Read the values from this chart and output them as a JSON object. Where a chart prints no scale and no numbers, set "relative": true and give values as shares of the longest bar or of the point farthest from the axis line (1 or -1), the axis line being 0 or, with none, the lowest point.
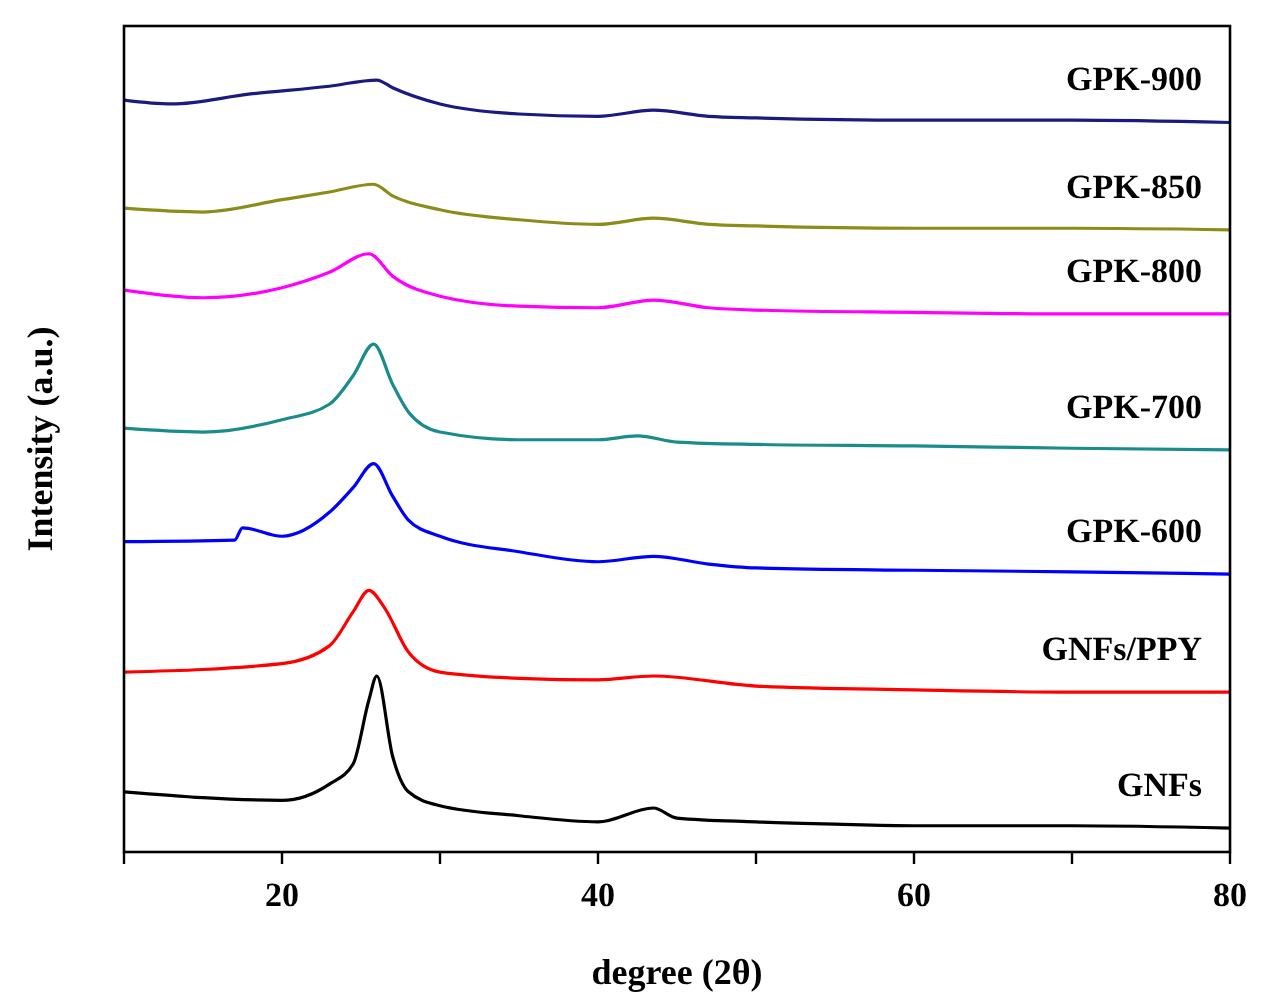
{
  "chart_data": {
    "type": "line",
    "relative": true,
    "xlabel": "degree (2θ)",
    "ylabel": "Intensity (a.u.)",
    "xlim": [
      10,
      80
    ],
    "xticks": [
      {
        "value": 10,
        "label": null
      },
      20,
      {
        "value": 30,
        "label": null
      },
      40,
      {
        "value": 50,
        "label": null
      },
      60,
      {
        "value": 70,
        "label": null
      },
      80
    ],
    "series": [
      {
        "name": "GPK-900",
        "color": "#1a1a80",
        "x": [
          10,
          13,
          18,
          23,
          26,
          27,
          30,
          35,
          40,
          43.5,
          47,
          50,
          60,
          70,
          80
        ],
        "values": [
          0.974,
          0.969,
          0.982,
          0.992,
          1.0,
          0.99,
          0.969,
          0.956,
          0.953,
          0.961,
          0.953,
          0.951,
          0.948,
          0.948,
          0.945
        ]
      },
      {
        "name": "GPK-850",
        "color": "#8c8c1a",
        "x": [
          10,
          15,
          20,
          23,
          25.8,
          27,
          30,
          35,
          40,
          43.5,
          47,
          50,
          60,
          70,
          80
        ],
        "values": [
          0.834,
          0.829,
          0.845,
          0.855,
          0.865,
          0.85,
          0.832,
          0.819,
          0.813,
          0.821,
          0.813,
          0.811,
          0.808,
          0.808,
          0.806
        ]
      },
      {
        "name": "GPK-800",
        "color": "#ff00ff",
        "x": [
          10,
          15,
          20,
          23,
          25.5,
          27,
          30,
          35,
          40,
          43.5,
          47,
          50,
          60,
          70,
          80
        ],
        "values": [
          0.728,
          0.718,
          0.731,
          0.751,
          0.775,
          0.746,
          0.72,
          0.707,
          0.705,
          0.715,
          0.705,
          0.702,
          0.699,
          0.697,
          0.697
        ]
      },
      {
        "name": "GPK-700",
        "color": "#1a8c8c",
        "x": [
          10,
          15,
          20,
          23,
          24.5,
          25.8,
          27,
          28,
          30,
          35,
          40,
          42.5,
          45,
          50,
          60,
          70,
          80
        ],
        "values": [
          0.549,
          0.544,
          0.56,
          0.58,
          0.617,
          0.658,
          0.606,
          0.57,
          0.544,
          0.534,
          0.534,
          0.539,
          0.531,
          0.528,
          0.526,
          0.523,
          0.521
        ]
      },
      {
        "name": "GPK-600",
        "color": "#0000ff",
        "x": [
          10,
          17,
          17.5,
          20,
          23,
          24.5,
          25.8,
          27,
          28,
          30,
          35,
          40,
          43.5,
          47,
          50,
          60,
          70,
          80
        ],
        "values": [
          0.402,
          0.404,
          0.42,
          0.409,
          0.44,
          0.472,
          0.503,
          0.461,
          0.43,
          0.409,
          0.389,
          0.376,
          0.383,
          0.373,
          0.368,
          0.365,
          0.363,
          0.36
        ]
      },
      {
        "name": "GNFs/PPY",
        "color": "#ff0000",
        "x": [
          10,
          20,
          23,
          24.5,
          25.5,
          26.5,
          28,
          30,
          35,
          40,
          43.5,
          50,
          60,
          70,
          80
        ],
        "values": [
          0.233,
          0.244,
          0.267,
          0.311,
          0.339,
          0.316,
          0.259,
          0.233,
          0.225,
          0.223,
          0.228,
          0.215,
          0.21,
          0.207,
          0.207
        ]
      },
      {
        "name": "GNFs",
        "color": "#000000",
        "x": [
          10,
          20,
          23,
          24.5,
          25.5,
          26,
          27,
          28,
          30,
          35,
          40,
          43.5,
          45,
          50,
          55,
          60,
          70,
          80
        ],
        "values": [
          0.078,
          0.067,
          0.088,
          0.114,
          0.197,
          0.228,
          0.124,
          0.078,
          0.06,
          0.047,
          0.039,
          0.057,
          0.044,
          0.039,
          0.036,
          0.034,
          0.034,
          0.031
        ]
      }
    ]
  }
}
